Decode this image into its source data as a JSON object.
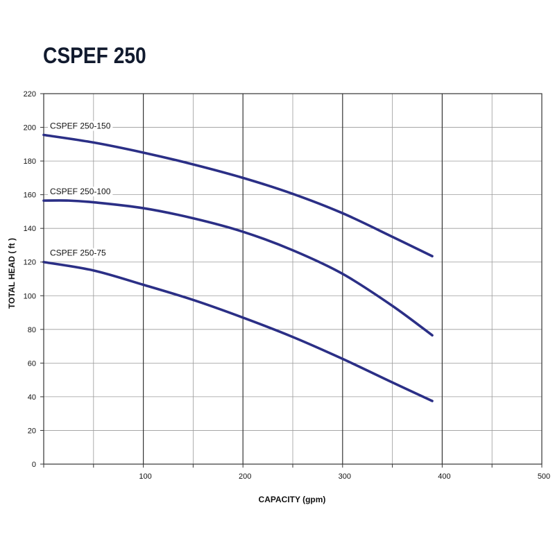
{
  "chart_data": {
    "type": "line",
    "title": "CSPEF 250",
    "xlabel": "CAPACITY (gpm)",
    "ylabel": "TOTAL HEAD ( ft )",
    "xlim": [
      0,
      500
    ],
    "ylim": [
      0,
      220
    ],
    "x_major_ticks": [
      100,
      200,
      300,
      400,
      500
    ],
    "x_tick_labels": [
      "100",
      "200",
      "300",
      "400",
      "500"
    ],
    "x_minor_gridlines": [
      50,
      150,
      250,
      350,
      450
    ],
    "y_ticks": [
      0,
      20,
      40,
      60,
      80,
      100,
      120,
      140,
      160,
      180,
      200,
      220
    ],
    "y_tick_labels": [
      "0",
      "20",
      "40",
      "60",
      "80",
      "100",
      "120",
      "140",
      "160",
      "180",
      "200",
      "220"
    ],
    "grid": true,
    "line_color": "#2b2f86",
    "series": [
      {
        "name": "CSPEF 250-150",
        "x": [
          0,
          50,
          100,
          150,
          200,
          250,
          300,
          350,
          390
        ],
        "y": [
          195.5,
          191,
          185,
          178,
          170,
          160.5,
          149,
          135,
          123.5
        ]
      },
      {
        "name": "CSPEF 250-100",
        "x": [
          0,
          25,
          50,
          100,
          150,
          200,
          250,
          300,
          350,
          390
        ],
        "y": [
          156.5,
          156.5,
          155.5,
          152,
          146,
          138,
          127,
          113,
          94,
          76.5
        ]
      },
      {
        "name": "CSPEF 250-75",
        "x": [
          0,
          50,
          100,
          150,
          200,
          250,
          300,
          350,
          390
        ],
        "y": [
          120,
          115,
          106.5,
          97.5,
          87,
          75.5,
          62.5,
          48.5,
          37.5
        ]
      }
    ]
  }
}
